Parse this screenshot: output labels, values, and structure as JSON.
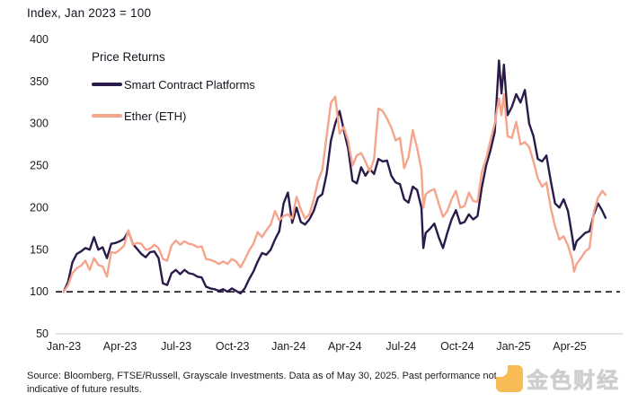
{
  "header": {
    "title": "Index, Jan 2023 = 100"
  },
  "legend": {
    "title": "Price Returns",
    "items": [
      {
        "label": "Smart Contract Platforms",
        "color": "#2b1b4a"
      },
      {
        "label": "Ether (ETH)",
        "color": "#f5a58b"
      }
    ]
  },
  "footer": {
    "source_line1": "Source: Bloomberg, FTSE/Russell, Grayscale Investments. Data as of May 30, 2025. Past performance not",
    "source_line2": "indicative of future results.",
    "watermark_text": "金色财经"
  },
  "colors": {
    "scp_line": "#2b1b4a",
    "eth_line": "#f5a58b",
    "baseline_dash": "#16131f",
    "axis_line": "#c9c9c9",
    "text": "#1d1d1f",
    "watermark_orange": "#f7a823"
  },
  "chart_data": {
    "type": "line",
    "title": "Index, Jan 2023 = 100",
    "ylabel": "Index (Jan 2023 = 100)",
    "xlabel": "",
    "ylim": [
      50,
      400
    ],
    "grid": false,
    "legend_position": "top-left",
    "baseline": {
      "value": 100,
      "style": "dashed"
    },
    "y_ticks": [
      400,
      350,
      300,
      250,
      200,
      150,
      100,
      50
    ],
    "x_ticks": [
      {
        "label": "Jan-23",
        "month": 0
      },
      {
        "label": "Apr-23",
        "month": 3
      },
      {
        "label": "Jul-23",
        "month": 6
      },
      {
        "label": "Oct-23",
        "month": 9
      },
      {
        "label": "Jan-24",
        "month": 12
      },
      {
        "label": "Apr-24",
        "month": 15
      },
      {
        "label": "Jul-24",
        "month": 18
      },
      {
        "label": "Oct-24",
        "month": 21
      },
      {
        "label": "Jan-25",
        "month": 24
      },
      {
        "label": "Apr-25",
        "month": 27
      }
    ],
    "x": [
      "2023-01-01",
      "2023-01-08",
      "2023-01-15",
      "2023-01-22",
      "2023-01-29",
      "2023-02-05",
      "2023-02-12",
      "2023-02-19",
      "2023-02-26",
      "2023-03-05",
      "2023-03-12",
      "2023-03-19",
      "2023-03-26",
      "2023-04-02",
      "2023-04-09",
      "2023-04-16",
      "2023-04-23",
      "2023-04-30",
      "2023-05-07",
      "2023-05-14",
      "2023-05-21",
      "2023-05-28",
      "2023-06-04",
      "2023-06-11",
      "2023-06-18",
      "2023-06-25",
      "2023-07-02",
      "2023-07-09",
      "2023-07-16",
      "2023-07-23",
      "2023-07-30",
      "2023-08-06",
      "2023-08-13",
      "2023-08-20",
      "2023-08-27",
      "2023-09-03",
      "2023-09-10",
      "2023-09-17",
      "2023-09-24",
      "2023-10-01",
      "2023-10-08",
      "2023-10-15",
      "2023-10-22",
      "2023-10-29",
      "2023-11-05",
      "2023-11-12",
      "2023-11-19",
      "2023-11-26",
      "2023-12-03",
      "2023-12-10",
      "2023-12-17",
      "2023-12-24",
      "2023-12-31",
      "2024-01-07",
      "2024-01-14",
      "2024-01-21",
      "2024-01-28",
      "2024-02-04",
      "2024-02-11",
      "2024-02-18",
      "2024-02-25",
      "2024-03-03",
      "2024-03-10",
      "2024-03-17",
      "2024-03-24",
      "2024-03-31",
      "2024-04-07",
      "2024-04-14",
      "2024-04-21",
      "2024-04-28",
      "2024-05-05",
      "2024-05-12",
      "2024-05-19",
      "2024-05-26",
      "2024-06-02",
      "2024-06-09",
      "2024-06-16",
      "2024-06-23",
      "2024-06-30",
      "2024-07-07",
      "2024-07-14",
      "2024-07-21",
      "2024-07-28",
      "2024-08-04",
      "2024-08-07",
      "2024-08-11",
      "2024-08-18",
      "2024-08-25",
      "2024-09-01",
      "2024-09-08",
      "2024-09-15",
      "2024-09-22",
      "2024-09-29",
      "2024-10-06",
      "2024-10-13",
      "2024-10-20",
      "2024-10-27",
      "2024-11-03",
      "2024-11-10",
      "2024-11-17",
      "2024-11-24",
      "2024-12-01",
      "2024-12-08",
      "2024-12-12",
      "2024-12-16",
      "2024-12-22",
      "2024-12-29",
      "2025-01-05",
      "2025-01-12",
      "2025-01-19",
      "2025-01-26",
      "2025-02-02",
      "2025-02-09",
      "2025-02-16",
      "2025-02-23",
      "2025-03-02",
      "2025-03-09",
      "2025-03-16",
      "2025-03-23",
      "2025-03-30",
      "2025-04-06",
      "2025-04-09",
      "2025-04-13",
      "2025-04-20",
      "2025-04-27",
      "2025-05-04",
      "2025-05-11",
      "2025-05-18",
      "2025-05-25",
      "2025-05-30"
    ],
    "series": [
      {
        "name": "Smart Contract Platforms",
        "color": "#2b1b4a",
        "values": [
          100,
          112,
          135,
          145,
          148,
          152,
          150,
          165,
          150,
          153,
          140,
          157,
          158,
          160,
          163,
          172,
          157,
          151,
          145,
          141,
          147,
          148,
          140,
          110,
          108,
          122,
          126,
          121,
          126,
          122,
          121,
          118,
          117,
          106,
          104,
          103,
          101,
          103,
          100,
          104,
          101,
          98,
          104,
          115,
          124,
          136,
          146,
          144,
          150,
          162,
          172,
          205,
          218,
          182,
          200,
          183,
          180,
          186,
          196,
          212,
          216,
          240,
          280,
          300,
          315,
          292,
          270,
          232,
          229,
          248,
          238,
          246,
          240,
          258,
          255,
          256,
          238,
          230,
          228,
          210,
          206,
          225,
          221,
          200,
          152,
          170,
          175,
          181,
          165,
          152,
          170,
          186,
          197,
          181,
          183,
          192,
          186,
          190,
          224,
          250,
          268,
          290,
          375,
          336,
          370,
          310,
          320,
          335,
          325,
          340,
          300,
          285,
          258,
          255,
          262,
          232,
          205,
          200,
          210,
          196,
          165,
          150,
          160,
          165,
          170,
          172,
          192,
          205,
          196,
          188
        ]
      },
      {
        "name": "Ether (ETH)",
        "color": "#f5a58b",
        "values": [
          100,
          108,
          122,
          128,
          131,
          137,
          126,
          140,
          132,
          130,
          118,
          147,
          146,
          150,
          155,
          173,
          156,
          158,
          157,
          150,
          151,
          156,
          152,
          139,
          137,
          155,
          161,
          156,
          160,
          157,
          156,
          153,
          154,
          139,
          138,
          136,
          133,
          136,
          133,
          139,
          136,
          129,
          138,
          149,
          157,
          171,
          165,
          173,
          180,
          196,
          185,
          190,
          192,
          187,
          213,
          198,
          187,
          192,
          209,
          232,
          245,
          285,
          325,
          332,
          288,
          296,
          279,
          250,
          262,
          265,
          255,
          243,
          258,
          318,
          315,
          306,
          295,
          280,
          283,
          247,
          260,
          292,
          271,
          245,
          200,
          216,
          220,
          222,
          205,
          189,
          196,
          210,
          220,
          200,
          202,
          218,
          208,
          207,
          242,
          258,
          280,
          300,
          330,
          310,
          335,
          285,
          283,
          302,
          275,
          278,
          272,
          255,
          235,
          225,
          230,
          200,
          178,
          162,
          166,
          155,
          138,
          124,
          133,
          140,
          148,
          152,
          195,
          212,
          220,
          215
        ]
      }
    ]
  }
}
